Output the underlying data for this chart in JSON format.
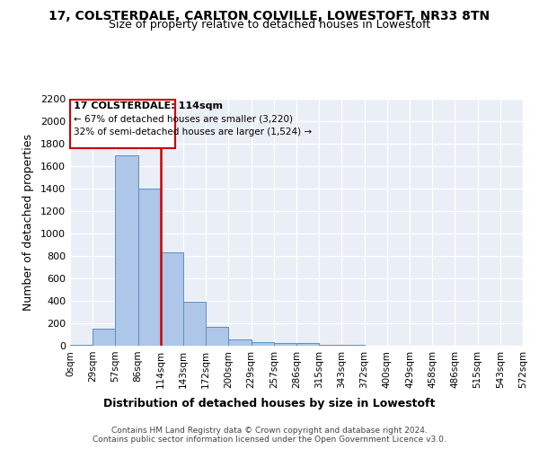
{
  "title1": "17, COLSTERDALE, CARLTON COLVILLE, LOWESTOFT, NR33 8TN",
  "title2": "Size of property relative to detached houses in Lowestoft",
  "xlabel": "Distribution of detached houses by size in Lowestoft",
  "ylabel": "Number of detached properties",
  "bin_labels": [
    "0sqm",
    "29sqm",
    "57sqm",
    "86sqm",
    "114sqm",
    "143sqm",
    "172sqm",
    "200sqm",
    "229sqm",
    "257sqm",
    "286sqm",
    "315sqm",
    "343sqm",
    "372sqm",
    "400sqm",
    "429sqm",
    "458sqm",
    "486sqm",
    "515sqm",
    "543sqm",
    "572sqm"
  ],
  "bar_heights": [
    10,
    155,
    1700,
    1400,
    835,
    390,
    165,
    60,
    35,
    25,
    25,
    10,
    5,
    0,
    0,
    0,
    0,
    0,
    0,
    0
  ],
  "bar_color": "#aec6e8",
  "bar_edge_color": "#5a8fc0",
  "marker_color": "#cc0000",
  "annotation_line1": "17 COLSTERDALE: 114sqm",
  "annotation_line2": "← 67% of detached houses are smaller (3,220)",
  "annotation_line3": "32% of semi-detached houses are larger (1,524) →",
  "ylim": [
    0,
    2200
  ],
  "yticks": [
    0,
    200,
    400,
    600,
    800,
    1000,
    1200,
    1400,
    1600,
    1800,
    2000,
    2200
  ],
  "footer1": "Contains HM Land Registry data © Crown copyright and database right 2024.",
  "footer2": "Contains public sector information licensed under the Open Government Licence v3.0.",
  "bg_color": "#eaeff7"
}
